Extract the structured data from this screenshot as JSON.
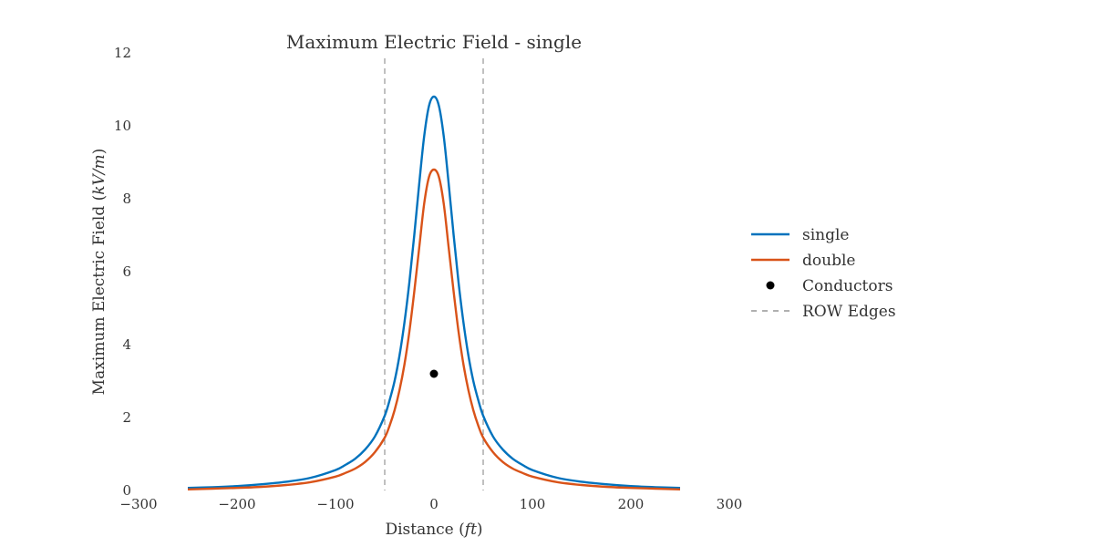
{
  "chart_data": {
    "type": "line",
    "title": "Maximum Electric Field - single",
    "xlabel": {
      "text": "Distance (",
      "unit": "ft",
      "close": ")"
    },
    "ylabel": {
      "text": "Maximum Electric Field (",
      "unit": "kV/m",
      "close": ")"
    },
    "xlim": [
      -300,
      300
    ],
    "ylim": [
      0,
      12
    ],
    "x_ticks": [
      -300,
      -200,
      -100,
      0,
      100,
      200,
      300
    ],
    "x_tick_labels": [
      "−300",
      "−200",
      "−100",
      "0",
      "100",
      "200",
      "300"
    ],
    "y_ticks": [
      0,
      2,
      4,
      6,
      8,
      10,
      12
    ],
    "y_tick_labels": [
      "0",
      "2",
      "4",
      "6",
      "8",
      "10",
      "12"
    ],
    "grid": false,
    "legend_position": "right",
    "series": [
      {
        "name": "single",
        "color": "#0072BD",
        "x": [
          -250,
          -225,
          -200,
          -175,
          -150,
          -125,
          -100,
          -90,
          -80,
          -70,
          -60,
          -50,
          -45,
          -40,
          -35,
          -30,
          -25,
          -20,
          -15,
          -10,
          -5,
          0,
          5,
          10,
          15,
          20,
          25,
          30,
          35,
          40,
          45,
          50,
          60,
          70,
          80,
          90,
          100,
          125,
          150,
          175,
          200,
          225,
          250
        ],
        "y": [
          0.07,
          0.09,
          0.12,
          0.17,
          0.24,
          0.35,
          0.56,
          0.7,
          0.87,
          1.12,
          1.48,
          2.05,
          2.48,
          3.0,
          3.7,
          4.6,
          5.7,
          7.0,
          8.4,
          9.7,
          10.55,
          10.8,
          10.55,
          9.7,
          8.4,
          7.0,
          5.7,
          4.6,
          3.7,
          3.0,
          2.48,
          2.05,
          1.48,
          1.12,
          0.87,
          0.7,
          0.56,
          0.35,
          0.24,
          0.17,
          0.12,
          0.09,
          0.07
        ]
      },
      {
        "name": "double",
        "color": "#D95319",
        "x": [
          -250,
          -225,
          -200,
          -175,
          -150,
          -125,
          -100,
          -90,
          -80,
          -70,
          -60,
          -50,
          -45,
          -40,
          -35,
          -30,
          -25,
          -20,
          -15,
          -10,
          -5,
          0,
          5,
          10,
          15,
          20,
          25,
          30,
          35,
          40,
          45,
          50,
          60,
          70,
          80,
          90,
          100,
          125,
          150,
          175,
          200,
          225,
          250
        ],
        "y": [
          0.03,
          0.05,
          0.07,
          0.1,
          0.15,
          0.23,
          0.38,
          0.48,
          0.6,
          0.78,
          1.05,
          1.45,
          1.78,
          2.2,
          2.75,
          3.45,
          4.35,
          5.45,
          6.65,
          7.85,
          8.6,
          8.8,
          8.6,
          7.85,
          6.65,
          5.45,
          4.35,
          3.45,
          2.75,
          2.2,
          1.78,
          1.45,
          1.05,
          0.78,
          0.6,
          0.48,
          0.38,
          0.23,
          0.15,
          0.1,
          0.07,
          0.05,
          0.03
        ]
      }
    ],
    "conductors": {
      "name": "Conductors",
      "color": "#000000",
      "points": [
        {
          "x": 0,
          "y": 3.2
        }
      ]
    },
    "row_edges": {
      "name": "ROW Edges",
      "color": "#808080",
      "x": [
        -50,
        50
      ]
    }
  }
}
